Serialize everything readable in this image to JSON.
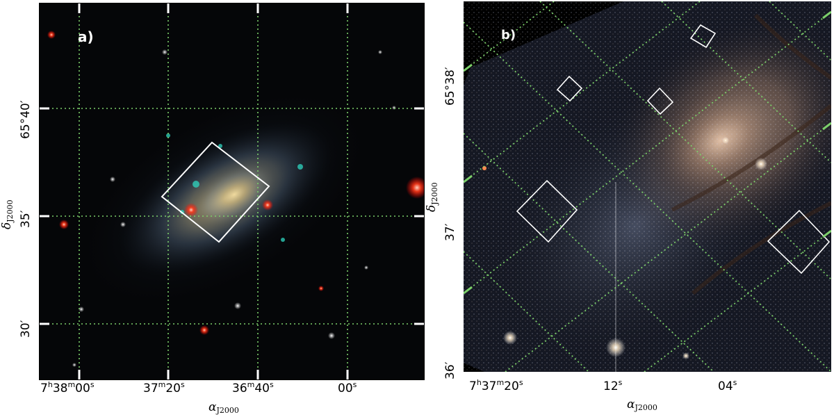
{
  "panel_a": {
    "label": "a)",
    "x_ticks": [
      "7h38m00s",
      "37m20s",
      "36m40s",
      "00s"
    ],
    "y_ticks": [
      "65°40′",
      "35′",
      "30′"
    ],
    "x_title": "αJ2000",
    "y_title": "δJ2000"
  },
  "panel_b": {
    "label": "b)",
    "x_ticks": [
      "7h37m20s",
      "12s",
      "04s"
    ],
    "y_ticks": [
      "65°38′",
      "37′",
      "36′"
    ],
    "x_title": "αJ2000",
    "y_title": "δJ2000"
  },
  "colors": {
    "grid": "#7ccf6a",
    "box": "#ffffff",
    "sky_a": "#050608",
    "sky_b": "#000000"
  }
}
